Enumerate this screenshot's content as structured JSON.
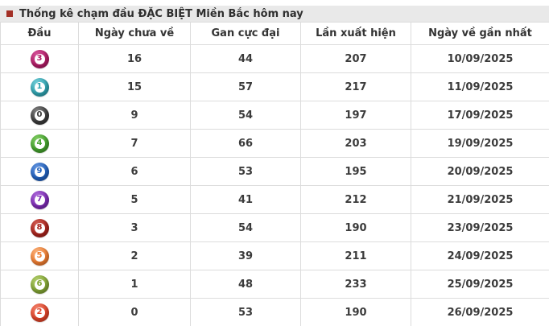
{
  "title": {
    "text": "Thống kê chạm đầu ĐẶC BIỆT Miền Bắc hôm nay"
  },
  "colors": {
    "title_bullet": "#a33026",
    "title_bar_bg": "#e9e9e9",
    "table_border": "#dcdcdc",
    "cell_text": "#3b3b3b"
  },
  "table": {
    "columns": [
      "Đầu",
      "Ngày chưa về",
      "Gan cực đại",
      "Lần xuất hiện",
      "Ngày về gần nhất"
    ],
    "rows": [
      {
        "head": "3",
        "ball_color": "#b01a64",
        "ball_light": "#d4549a",
        "days_not_returned": "16",
        "max_gap": "44",
        "occurrences": "207",
        "last_return_date": "10/09/2025"
      },
      {
        "head": "1",
        "ball_color": "#2fa3b0",
        "ball_light": "#72ccd6",
        "days_not_returned": "15",
        "max_gap": "57",
        "occurrences": "217",
        "last_return_date": "11/09/2025"
      },
      {
        "head": "0",
        "ball_color": "#3b3b3b",
        "ball_light": "#808080",
        "days_not_returned": "9",
        "max_gap": "54",
        "occurrences": "197",
        "last_return_date": "17/09/2025"
      },
      {
        "head": "4",
        "ball_color": "#43a12c",
        "ball_light": "#80cb62",
        "days_not_returned": "7",
        "max_gap": "66",
        "occurrences": "203",
        "last_return_date": "19/09/2025"
      },
      {
        "head": "9",
        "ball_color": "#2160bd",
        "ball_light": "#6293dd",
        "days_not_returned": "6",
        "max_gap": "53",
        "occurrences": "195",
        "last_return_date": "20/09/2025"
      },
      {
        "head": "7",
        "ball_color": "#7c2ab3",
        "ball_light": "#ab68d8",
        "days_not_returned": "5",
        "max_gap": "41",
        "occurrences": "212",
        "last_return_date": "21/09/2025"
      },
      {
        "head": "8",
        "ball_color": "#a8231c",
        "ball_light": "#d05c52",
        "days_not_returned": "3",
        "max_gap": "54",
        "occurrences": "190",
        "last_return_date": "23/09/2025"
      },
      {
        "head": "5",
        "ball_color": "#ee7c30",
        "ball_light": "#f8b07a",
        "days_not_returned": "2",
        "max_gap": "39",
        "occurrences": "211",
        "last_return_date": "24/09/2025"
      },
      {
        "head": "6",
        "ball_color": "#82a534",
        "ball_light": "#b0cc6b",
        "days_not_returned": "1",
        "max_gap": "48",
        "occurrences": "233",
        "last_return_date": "25/09/2025"
      },
      {
        "head": "2",
        "ball_color": "#df4228",
        "ball_light": "#f0806a",
        "days_not_returned": "0",
        "max_gap": "53",
        "occurrences": "190",
        "last_return_date": "26/09/2025"
      }
    ]
  }
}
